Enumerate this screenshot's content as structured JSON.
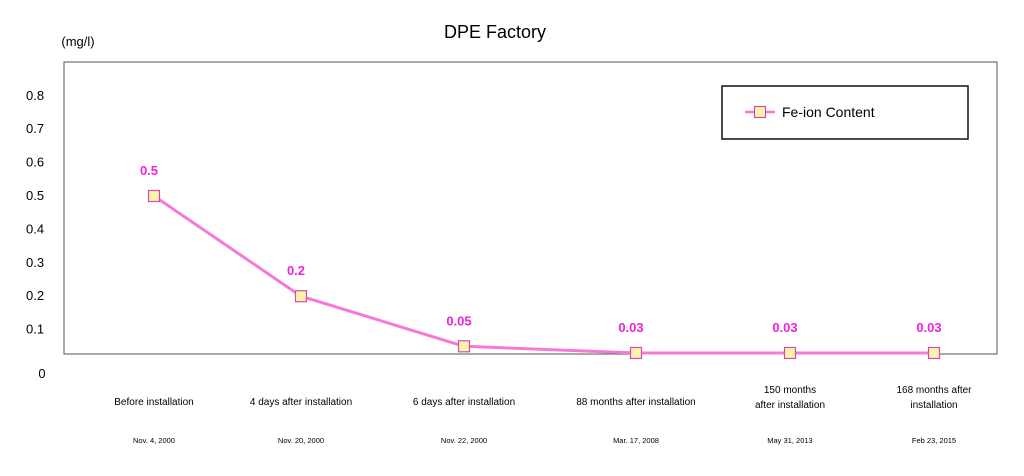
{
  "chart_data": {
    "type": "line",
    "title": "DPE Factory",
    "unit_label": "(mg/l)",
    "y_ticks": [
      "0",
      "0.1",
      "0.2",
      "0.3",
      "0.4",
      "0.5",
      "0.6",
      "0.7",
      "0.8"
    ],
    "ylim": [
      0,
      0.9
    ],
    "grid": false,
    "legend_position": "top-right",
    "categories": [
      [
        "Before installation"
      ],
      [
        "4 days after installation"
      ],
      [
        "6 days after installation"
      ],
      [
        "88 months after installation"
      ],
      [
        "150 months",
        "after installation"
      ],
      [
        "168 months after",
        "installation"
      ]
    ],
    "dates": [
      "Nov. 4, 2000",
      "Nov. 20, 2000",
      "Nov. 22, 2000",
      "Mar. 17, 2008",
      "May 31, 2013",
      "Feb 23, 2015"
    ],
    "series": [
      {
        "name": "Fe-ion Content",
        "values": [
          0.5,
          0.2,
          0.05,
          0.03,
          0.03,
          0.03
        ],
        "labels": [
          "0.5",
          "0.2",
          "0.05",
          "0.03",
          "0.03",
          "0.03"
        ],
        "line_color": "#f57ad8",
        "marker_fill": "#fbf5a8",
        "marker_stroke": "#d946b8",
        "label_color": "#ee22dd"
      }
    ]
  }
}
